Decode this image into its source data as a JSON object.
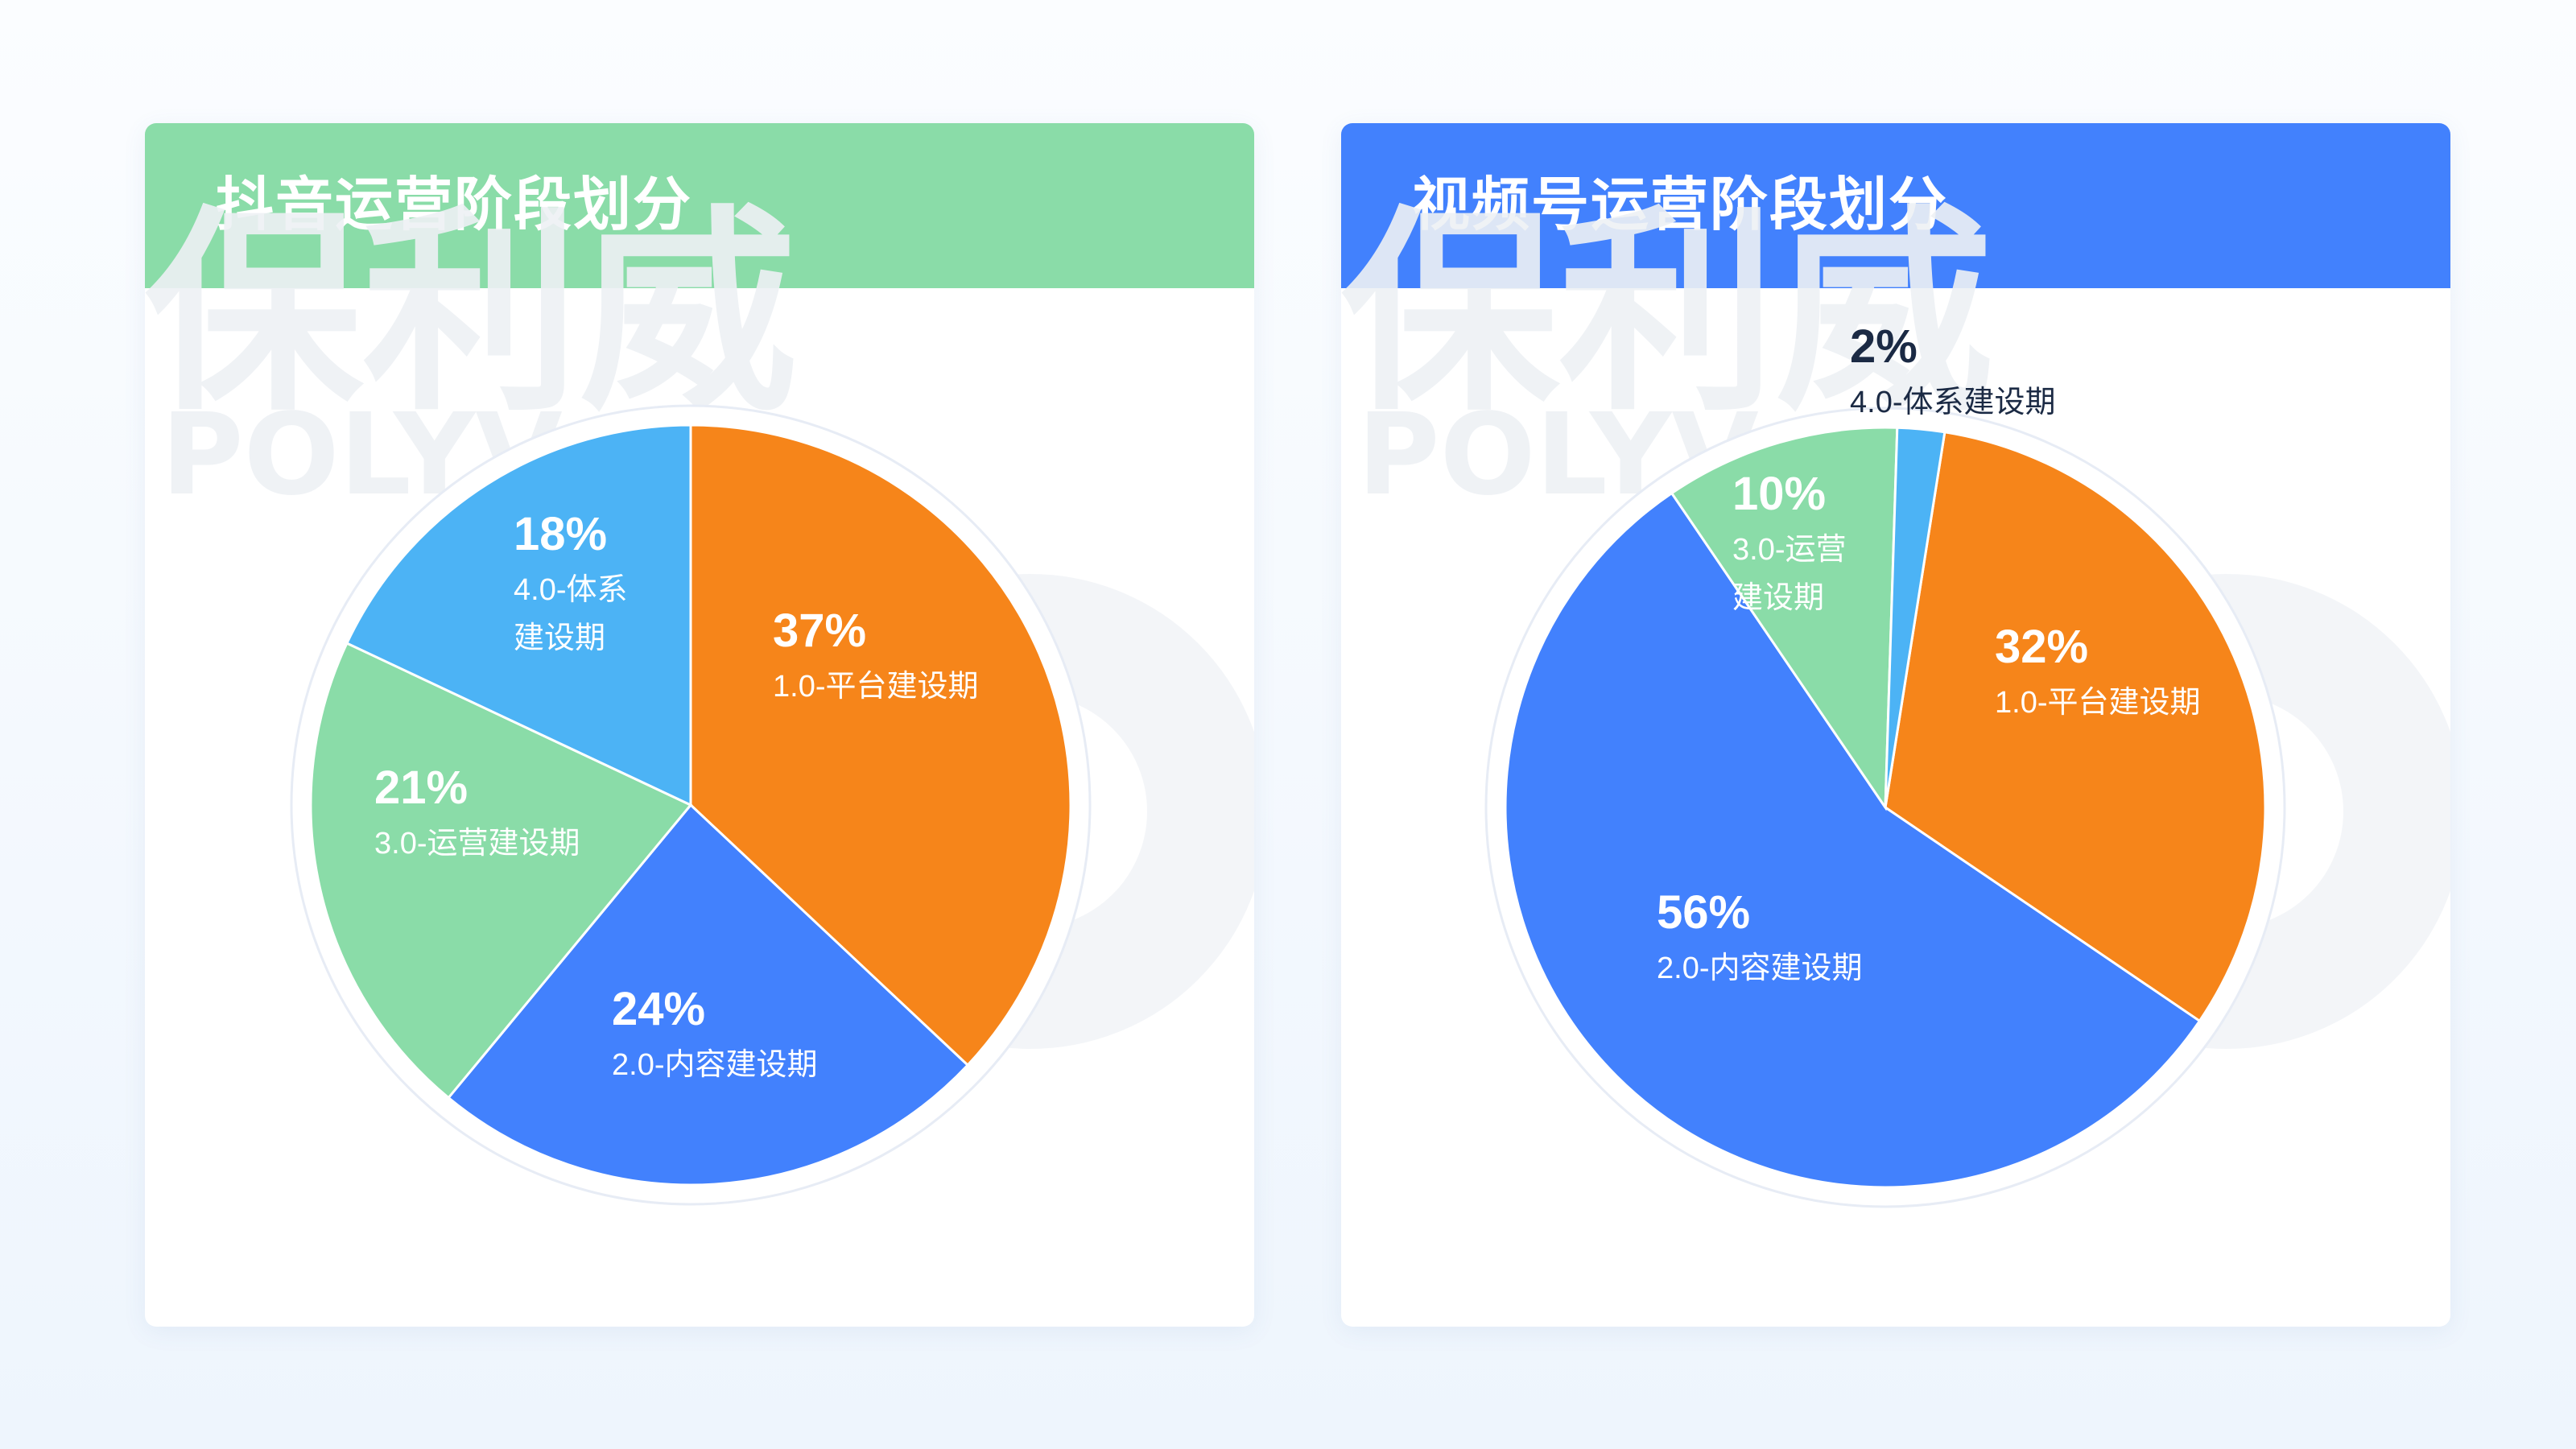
{
  "colors": {
    "orange": "#F6851A",
    "blue": "#4281FD",
    "green": "#8ADCA8",
    "lightblue": "#4CB3F5",
    "douyin_header": "#8ADCA8",
    "shipin_header": "#4281FD"
  },
  "watermark": {
    "brand_cn": "保利威",
    "brand_en": "POLYV"
  },
  "chart_data": [
    {
      "type": "pie",
      "title": "抖音运营阶段划分",
      "slices": [
        {
          "label": "1.0-平台建设期",
          "value": 37,
          "pct_label": "37%",
          "color": "#F6851A",
          "label_lines": [
            "1.0-平台建设期"
          ],
          "label_color": "#ffffff"
        },
        {
          "label": "2.0-内容建设期",
          "value": 24,
          "pct_label": "24%",
          "color": "#4281FD",
          "label_lines": [
            "2.0-内容建设期"
          ],
          "label_color": "#ffffff"
        },
        {
          "label": "3.0-运营建设期",
          "value": 21,
          "pct_label": "21%",
          "color": "#8ADCA8",
          "label_lines": [
            "3.0-运营建设期"
          ],
          "label_color": "#ffffff"
        },
        {
          "label": "4.0-体系建设期",
          "value": 18,
          "pct_label": "18%",
          "color": "#4CB3F5",
          "label_lines": [
            "4.0-体系",
            "建设期"
          ],
          "label_color": "#ffffff"
        }
      ]
    },
    {
      "type": "pie",
      "title": "视频号运营阶段划分",
      "slices": [
        {
          "label": "1.0-平台建设期",
          "value": 32,
          "pct_label": "32%",
          "color": "#F6851A",
          "label_lines": [
            "1.0-平台建设期"
          ],
          "label_color": "#ffffff"
        },
        {
          "label": "2.0-内容建设期",
          "value": 56,
          "pct_label": "56%",
          "color": "#4281FD",
          "label_lines": [
            "2.0-内容建设期"
          ],
          "label_color": "#ffffff"
        },
        {
          "label": "3.0-运营建设期",
          "value": 10,
          "pct_label": "10%",
          "color": "#8ADCA8",
          "label_lines": [
            "3.0-运营",
            "建设期"
          ],
          "label_color": "#ffffff"
        },
        {
          "label": "4.0-体系建设期",
          "value": 2,
          "pct_label": "2%",
          "color": "#4CB3F5",
          "label_lines": [
            "4.0-体系建设期"
          ],
          "label_color": "#1b2a44"
        }
      ]
    }
  ]
}
